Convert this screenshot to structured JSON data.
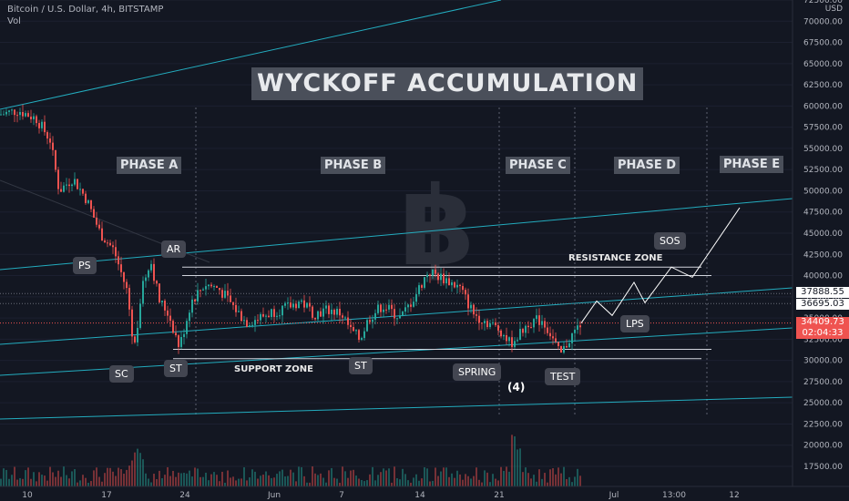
{
  "header": {
    "symbol": "Bitcoin / U.S. Dollar, 4h, BITSTAMP",
    "indicator": "Vol"
  },
  "title": "WYCKOFF ACCUMULATION",
  "phases": [
    "PHASE A",
    "PHASE B",
    "PHASE C",
    "PHASE D",
    "PHASE E"
  ],
  "labels": {
    "ps": "PS",
    "ar": "AR",
    "sc": "SC",
    "st1": "ST",
    "st2": "ST",
    "spring": "SPRING",
    "test": "TEST",
    "lps": "LPS",
    "sos": "SOS"
  },
  "zones": {
    "resistance": "RESISTANCE ZONE",
    "support": "SUPPORT ZONE"
  },
  "wave_count": "(4)",
  "price_tags": {
    "level1": "37888.55",
    "level2": "36695.03",
    "current": "34409.73",
    "countdown": "02:04:33"
  },
  "colors": {
    "background": "#131722",
    "up": "#26a69a",
    "down": "#ef5350",
    "channel": "#26c6da",
    "label_bg": "#434651"
  },
  "chart_data": {
    "type": "candlestick",
    "ylabel": "USD",
    "ylim": [
      16000,
      72500
    ],
    "y_ticks": [
      17500,
      20000,
      22500,
      25000,
      27500,
      30000,
      32500,
      35000,
      37500,
      40000,
      42500,
      45000,
      47500,
      50000,
      52500,
      55000,
      57500,
      60000,
      62500,
      65000,
      67500,
      70000,
      72500
    ],
    "x_ticks": [
      "10",
      "17",
      "24",
      "Jun",
      "7",
      "14",
      "21",
      "Jul",
      "13:00",
      "12"
    ],
    "price_path": [
      [
        0,
        59000
      ],
      [
        20,
        59500
      ],
      [
        40,
        58500
      ],
      [
        55,
        56000
      ],
      [
        65,
        50000
      ],
      [
        80,
        51500
      ],
      [
        95,
        49000
      ],
      [
        110,
        45000
      ],
      [
        125,
        43000
      ],
      [
        140,
        38000
      ],
      [
        147,
        31000
      ],
      [
        155,
        38000
      ],
      [
        165,
        42000
      ],
      [
        175,
        37000
      ],
      [
        185,
        35500
      ],
      [
        197,
        31500
      ],
      [
        210,
        37000
      ],
      [
        225,
        39000
      ],
      [
        240,
        38500
      ],
      [
        255,
        36500
      ],
      [
        270,
        34500
      ],
      [
        285,
        35000
      ],
      [
        300,
        35800
      ],
      [
        315,
        36200
      ],
      [
        330,
        37000
      ],
      [
        345,
        35500
      ],
      [
        360,
        36000
      ],
      [
        375,
        35500
      ],
      [
        385,
        33500
      ],
      [
        395,
        32500
      ],
      [
        405,
        35000
      ],
      [
        420,
        36500
      ],
      [
        440,
        35000
      ],
      [
        455,
        37500
      ],
      [
        470,
        40500
      ],
      [
        490,
        39500
      ],
      [
        505,
        38500
      ],
      [
        520,
        35500
      ],
      [
        535,
        34500
      ],
      [
        550,
        33500
      ],
      [
        560,
        32000
      ],
      [
        570,
        33000
      ],
      [
        580,
        34500
      ],
      [
        595,
        34800
      ],
      [
        605,
        33000
      ],
      [
        615,
        30500
      ],
      [
        625,
        32500
      ],
      [
        638,
        34400
      ]
    ],
    "projection_path": [
      [
        638,
        34400
      ],
      [
        655,
        37000
      ],
      [
        672,
        35300
      ],
      [
        696,
        39200
      ],
      [
        708,
        36800
      ],
      [
        737,
        41000
      ],
      [
        760,
        39800
      ],
      [
        812,
        48000
      ]
    ],
    "horizontal_levels": [
      41000,
      40000,
      31300,
      30200
    ],
    "volume_max": 27000
  }
}
